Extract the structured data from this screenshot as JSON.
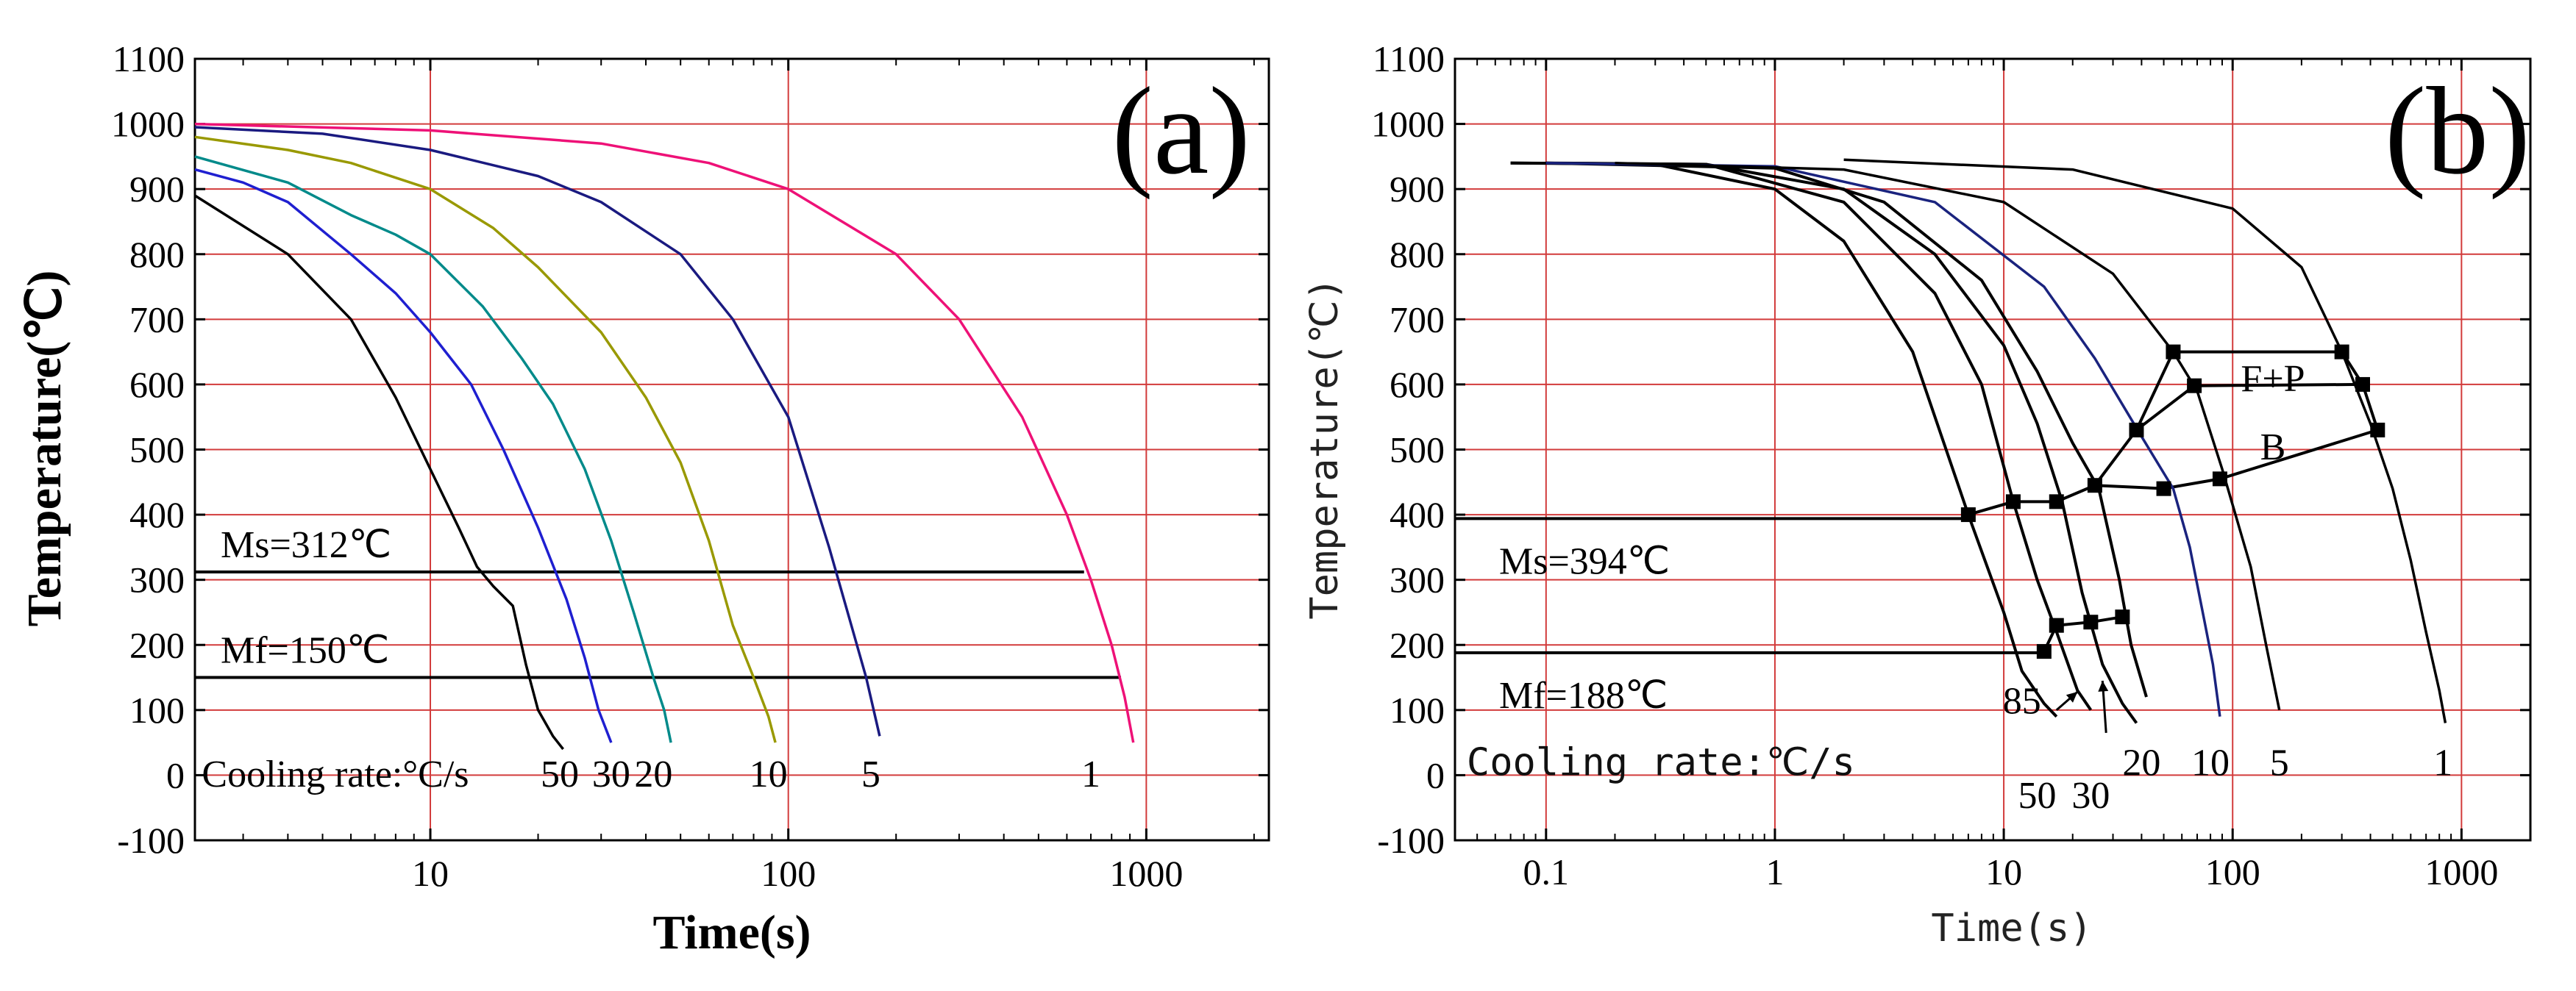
{
  "chart_data": [
    {
      "type": "line",
      "panel_label": "(a)",
      "xlabel": "Time(s)",
      "ylabel": "Temperature(℃)",
      "xscale": "log",
      "xlim": [
        2.2,
        2200
      ],
      "ylim": [
        -100,
        1100
      ],
      "xticks": [
        {
          "v": 10,
          "label": "10"
        },
        {
          "v": 100,
          "label": "100"
        },
        {
          "v": 1000,
          "label": "1000"
        }
      ],
      "yticks": [
        -100,
        0,
        100,
        200,
        300,
        400,
        500,
        600,
        700,
        800,
        900,
        1000,
        1100
      ],
      "grid": true,
      "series": [
        {
          "name": "50",
          "color": "#000000",
          "points": [
            [
              2.2,
              890
            ],
            [
              4,
              800
            ],
            [
              6,
              700
            ],
            [
              8,
              580
            ],
            [
              10,
              470
            ],
            [
              12,
              380
            ],
            [
              13.5,
              320
            ],
            [
              15,
              290
            ],
            [
              17,
              260
            ],
            [
              18.5,
              170
            ],
            [
              20,
              100
            ],
            [
              22,
              60
            ],
            [
              23.5,
              40
            ]
          ]
        },
        {
          "name": "30",
          "color": "#1f1fd0",
          "points": [
            [
              2.2,
              930
            ],
            [
              3,
              910
            ],
            [
              4,
              880
            ],
            [
              6,
              800
            ],
            [
              8,
              740
            ],
            [
              10,
              680
            ],
            [
              13,
              600
            ],
            [
              16,
              500
            ],
            [
              20,
              380
            ],
            [
              24,
              270
            ],
            [
              27,
              180
            ],
            [
              29.5,
              100
            ],
            [
              32,
              50
            ]
          ]
        },
        {
          "name": "20",
          "color": "#008a8a",
          "points": [
            [
              2.2,
              950
            ],
            [
              4,
              910
            ],
            [
              6,
              860
            ],
            [
              8,
              830
            ],
            [
              10,
              800
            ],
            [
              14,
              720
            ],
            [
              18,
              640
            ],
            [
              22,
              570
            ],
            [
              27,
              470
            ],
            [
              32,
              360
            ],
            [
              37,
              250
            ],
            [
              42,
              150
            ],
            [
              45,
              100
            ],
            [
              47,
              50
            ]
          ]
        },
        {
          "name": "10",
          "color": "#999900",
          "points": [
            [
              2.2,
              980
            ],
            [
              4,
              960
            ],
            [
              6,
              940
            ],
            [
              10,
              900
            ],
            [
              15,
              840
            ],
            [
              20,
              780
            ],
            [
              30,
              680
            ],
            [
              40,
              580
            ],
            [
              50,
              480
            ],
            [
              60,
              360
            ],
            [
              70,
              230
            ],
            [
              80,
              150
            ],
            [
              88,
              90
            ],
            [
              92,
              50
            ]
          ]
        },
        {
          "name": "5",
          "color": "#1a1a80",
          "points": [
            [
              2.2,
              995
            ],
            [
              5,
              985
            ],
            [
              10,
              960
            ],
            [
              20,
              920
            ],
            [
              30,
              880
            ],
            [
              50,
              800
            ],
            [
              70,
              700
            ],
            [
              100,
              550
            ],
            [
              130,
              350
            ],
            [
              150,
              230
            ],
            [
              165,
              150
            ],
            [
              180,
              60
            ]
          ]
        },
        {
          "name": "1",
          "color": "#ee1177",
          "points": [
            [
              2.2,
              1000
            ],
            [
              10,
              990
            ],
            [
              30,
              970
            ],
            [
              60,
              940
            ],
            [
              100,
              900
            ],
            [
              200,
              800
            ],
            [
              300,
              700
            ],
            [
              450,
              550
            ],
            [
              600,
              400
            ],
            [
              700,
              300
            ],
            [
              800,
              200
            ],
            [
              870,
              120
            ],
            [
              920,
              50
            ]
          ]
        }
      ],
      "hlines": [
        {
          "label": "Ms=312℃",
          "y": 312,
          "x_end": 670
        },
        {
          "label": "Mf=150℃",
          "y": 150,
          "x_end": 850
        }
      ],
      "rate_labels": [
        {
          "text": "Cooling rate:°C/s",
          "x": 2.3,
          "y": 3
        },
        {
          "text": "50",
          "x": 23,
          "y": 3
        },
        {
          "text": "30",
          "x": 32,
          "y": 3
        },
        {
          "text": "20",
          "x": 42,
          "y": 3
        },
        {
          "text": "10",
          "x": 88,
          "y": 3
        },
        {
          "text": "5",
          "x": 170,
          "y": 3
        },
        {
          "text": "1",
          "x": 700,
          "y": 3
        }
      ]
    },
    {
      "type": "line",
      "panel_label": "(b)",
      "xlabel": "Time(s)",
      "ylabel": "Temperature(℃)",
      "xscale": "log",
      "xlim": [
        0.04,
        2000
      ],
      "ylim": [
        -100,
        1100
      ],
      "xticks": [
        {
          "v": 0.1,
          "label": "0.1"
        },
        {
          "v": 1,
          "label": "1"
        },
        {
          "v": 10,
          "label": "10"
        },
        {
          "v": 100,
          "label": "100"
        },
        {
          "v": 1000,
          "label": "1000"
        }
      ],
      "yticks": [
        -100,
        0,
        100,
        200,
        300,
        400,
        500,
        600,
        700,
        800,
        900,
        1000,
        1100
      ],
      "grid": true,
      "series": [
        {
          "name": "85",
          "color": "#000000",
          "points": [
            [
              0.07,
              940
            ],
            [
              0.3,
              938
            ],
            [
              1,
              900
            ],
            [
              2,
              820
            ],
            [
              4,
              650
            ],
            [
              7,
              400
            ],
            [
              10,
              250
            ],
            [
              12,
              160
            ],
            [
              15,
              110
            ],
            [
              17,
              90
            ]
          ]
        },
        {
          "name": "50",
          "color": "#000000",
          "points": [
            [
              0.07,
              940
            ],
            [
              0.5,
              938
            ],
            [
              2,
              880
            ],
            [
              5,
              740
            ],
            [
              8,
              600
            ],
            [
              11,
              420
            ],
            [
              14,
              300
            ],
            [
              17,
              220
            ],
            [
              21,
              130
            ],
            [
              24,
              100
            ]
          ]
        },
        {
          "name": "30",
          "color": "#000000",
          "points": [
            [
              0.1,
              940
            ],
            [
              0.5,
              938
            ],
            [
              2,
              900
            ],
            [
              5,
              800
            ],
            [
              10,
              660
            ],
            [
              14,
              540
            ],
            [
              18,
              420
            ],
            [
              22,
              280
            ],
            [
              27,
              170
            ],
            [
              33,
              110
            ],
            [
              38,
              80
            ]
          ]
        },
        {
          "name": "20",
          "color": "#000000",
          "points": [
            [
              0.1,
              940
            ],
            [
              1,
              932
            ],
            [
              3,
              880
            ],
            [
              8,
              760
            ],
            [
              14,
              620
            ],
            [
              20,
              510
            ],
            [
              26,
              440
            ],
            [
              32,
              300
            ],
            [
              36,
              200
            ],
            [
              42,
              120
            ]
          ]
        },
        {
          "name": "10",
          "color": "#1a237e",
          "points": [
            [
              0.1,
              940
            ],
            [
              1,
              935
            ],
            [
              5,
              880
            ],
            [
              15,
              750
            ],
            [
              25,
              640
            ],
            [
              40,
              520
            ],
            [
              55,
              440
            ],
            [
              65,
              350
            ],
            [
              75,
              240
            ],
            [
              82,
              170
            ],
            [
              88,
              90
            ]
          ]
        },
        {
          "name": "5",
          "color": "#000000",
          "points": [
            [
              0.2,
              940
            ],
            [
              2,
              930
            ],
            [
              10,
              880
            ],
            [
              30,
              770
            ],
            [
              55,
              650
            ],
            [
              70,
              590
            ],
            [
              90,
              470
            ],
            [
              120,
              320
            ],
            [
              140,
              200
            ],
            [
              160,
              100
            ]
          ]
        },
        {
          "name": "1",
          "color": "#000000",
          "points": [
            [
              2,
              945
            ],
            [
              20,
              930
            ],
            [
              100,
              870
            ],
            [
              200,
              780
            ],
            [
              300,
              650
            ],
            [
              400,
              540
            ],
            [
              500,
              440
            ],
            [
              600,
              330
            ],
            [
              700,
              220
            ],
            [
              800,
              130
            ],
            [
              850,
              80
            ]
          ]
        }
      ],
      "hlines": [
        {
          "label": "Ms=394℃",
          "y": 394,
          "x_end": 7
        },
        {
          "label": "Mf=188℃",
          "y": 188,
          "x_end": 15
        }
      ],
      "markers": [
        [
          7,
          400
        ],
        [
          11,
          420
        ],
        [
          17,
          420
        ],
        [
          25,
          445
        ],
        [
          38,
          530
        ],
        [
          55,
          650
        ],
        [
          68,
          598
        ],
        [
          50,
          440
        ],
        [
          88,
          455
        ],
        [
          300,
          650
        ],
        [
          370,
          600
        ],
        [
          430,
          530
        ],
        [
          15,
          190
        ],
        [
          17,
          230
        ],
        [
          24,
          235
        ],
        [
          33,
          243
        ]
      ],
      "boundary_lines": [
        [
          [
            7,
            400
          ],
          [
            11,
            420
          ],
          [
            17,
            420
          ],
          [
            25,
            445
          ],
          [
            38,
            530
          ],
          [
            55,
            650
          ]
        ],
        [
          [
            25,
            445
          ],
          [
            50,
            440
          ],
          [
            88,
            455
          ],
          [
            430,
            530
          ]
        ],
        [
          [
            38,
            530
          ],
          [
            68,
            598
          ]
        ],
        [
          [
            55,
            650
          ],
          [
            300,
            650
          ],
          [
            370,
            600
          ]
        ],
        [
          [
            68,
            598
          ],
          [
            370,
            600
          ],
          [
            430,
            530
          ]
        ],
        [
          [
            15,
            190
          ],
          [
            17,
            230
          ],
          [
            24,
            235
          ],
          [
            33,
            243
          ]
        ]
      ],
      "region_labels": [
        {
          "text": "F+P",
          "x": 150,
          "y": 610
        },
        {
          "text": "B",
          "x": 150,
          "y": 505
        }
      ],
      "rate_labels": [
        {
          "text": "Cooling rate:℃/s",
          "x": 0.045,
          "y": 20
        },
        {
          "text": "85",
          "x": 12,
          "y": 115
        },
        {
          "text": "50",
          "x": 14,
          "y": -30
        },
        {
          "text": "30",
          "x": 24,
          "y": -30
        },
        {
          "text": "20",
          "x": 40,
          "y": 20
        },
        {
          "text": "10",
          "x": 80,
          "y": 20
        },
        {
          "text": "5",
          "x": 160,
          "y": 20
        },
        {
          "text": "1",
          "x": 830,
          "y": 20
        }
      ],
      "pointer_arrows": [
        {
          "from": [
            17,
            100
          ],
          "to": [
            21,
            128
          ]
        },
        {
          "from": [
            28,
            65
          ],
          "to": [
            27,
            145
          ]
        }
      ]
    }
  ]
}
